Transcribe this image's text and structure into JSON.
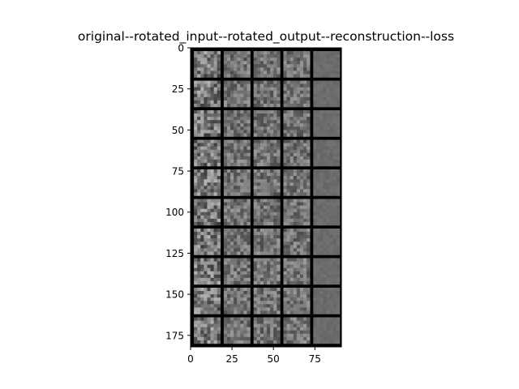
{
  "chart_data": {
    "type": "heatmap",
    "title": "original--rotated_input--rotated_output--reconstruction--loss",
    "xlabel": "",
    "ylabel": "",
    "xlim": [
      0,
      91
    ],
    "ylim": [
      182,
      0
    ],
    "x_ticks": [
      0,
      25,
      50,
      75
    ],
    "y_ticks": [
      0,
      25,
      50,
      75,
      100,
      125,
      150,
      175
    ],
    "grid": false,
    "columns": [
      "original",
      "rotated_input",
      "rotated_output",
      "reconstruction",
      "loss"
    ],
    "rows": 10,
    "cell_size": 16,
    "cell_border": 2,
    "colormap": "gray"
  }
}
